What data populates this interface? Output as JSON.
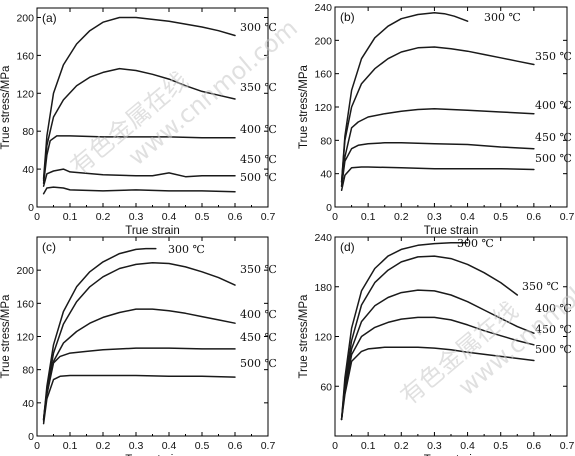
{
  "chart_data": [
    {
      "type": "line",
      "panel_label": "(a)",
      "xlabel": "True strain",
      "ylabel": "True stress/MPa",
      "xlim": [
        0,
        0.7
      ],
      "ylim": [
        0,
        210
      ],
      "xticks": [
        "0",
        "0.1",
        "0.2",
        "0.3",
        "0.4",
        "0.5",
        "0.6",
        "0.7"
      ],
      "yticks": [
        "0",
        "40",
        "80",
        "120",
        "160",
        "200"
      ],
      "ytick_values": [
        0,
        40,
        80,
        120,
        160,
        200
      ],
      "series": [
        {
          "name": "300 ℃",
          "x": [
            0.02,
            0.03,
            0.05,
            0.08,
            0.12,
            0.16,
            0.2,
            0.25,
            0.3,
            0.35,
            0.4,
            0.45,
            0.5,
            0.55,
            0.6
          ],
          "y": [
            30,
            75,
            120,
            150,
            172,
            186,
            195,
            200,
            200,
            198,
            196,
            193,
            190,
            186,
            181
          ]
        },
        {
          "name": "350 ℃",
          "x": [
            0.02,
            0.03,
            0.05,
            0.08,
            0.12,
            0.16,
            0.2,
            0.25,
            0.3,
            0.35,
            0.4,
            0.45,
            0.5,
            0.55,
            0.6
          ],
          "y": [
            28,
            65,
            95,
            113,
            128,
            137,
            142,
            146,
            144,
            140,
            135,
            128,
            122,
            118,
            114
          ]
        },
        {
          "name": "400 ℃",
          "x": [
            0.02,
            0.03,
            0.04,
            0.06,
            0.1,
            0.2,
            0.3,
            0.4,
            0.5,
            0.6
          ],
          "y": [
            25,
            55,
            70,
            75,
            75,
            74,
            74,
            74,
            73,
            73
          ]
        },
        {
          "name": "450 ℃",
          "x": [
            0.02,
            0.03,
            0.05,
            0.08,
            0.1,
            0.2,
            0.3,
            0.35,
            0.4,
            0.45,
            0.5,
            0.6
          ],
          "y": [
            22,
            35,
            38,
            40,
            37,
            34,
            33,
            33,
            36,
            32,
            33,
            33
          ]
        },
        {
          "name": "500 ℃",
          "x": [
            0.02,
            0.03,
            0.05,
            0.08,
            0.1,
            0.2,
            0.3,
            0.4,
            0.5,
            0.6
          ],
          "y": [
            14,
            20,
            21,
            20,
            18,
            17,
            18,
            17,
            17,
            16
          ]
        }
      ]
    },
    {
      "type": "line",
      "panel_label": "(b)",
      "xlabel": "True strain",
      "ylabel": "True stress/MPa",
      "xlim": [
        0,
        0.7
      ],
      "ylim": [
        0,
        240
      ],
      "xticks": [
        "0",
        "0.1",
        "0.2",
        "0.3",
        "0.4",
        "0.5",
        "0.6",
        "0.7"
      ],
      "yticks": [
        "0",
        "40",
        "80",
        "120",
        "160",
        "200",
        "240"
      ],
      "ytick_values": [
        0,
        40,
        80,
        120,
        160,
        200,
        240
      ],
      "series": [
        {
          "name": "300 ℃",
          "x": [
            0.02,
            0.03,
            0.05,
            0.08,
            0.12,
            0.16,
            0.2,
            0.25,
            0.3,
            0.33,
            0.36,
            0.4
          ],
          "y": [
            30,
            85,
            140,
            178,
            203,
            217,
            226,
            231,
            233,
            232,
            229,
            223
          ]
        },
        {
          "name": "350 ℃",
          "x": [
            0.02,
            0.03,
            0.05,
            0.08,
            0.12,
            0.16,
            0.2,
            0.25,
            0.3,
            0.35,
            0.4,
            0.45,
            0.5,
            0.55,
            0.6
          ],
          "y": [
            30,
            80,
            120,
            148,
            166,
            178,
            186,
            191,
            192,
            190,
            187,
            183,
            179,
            175,
            171
          ]
        },
        {
          "name": "400 ℃",
          "x": [
            0.02,
            0.03,
            0.05,
            0.07,
            0.1,
            0.15,
            0.2,
            0.25,
            0.3,
            0.35,
            0.4,
            0.5,
            0.6
          ],
          "y": [
            25,
            60,
            95,
            102,
            108,
            112,
            115,
            117,
            118,
            117,
            116,
            114,
            112
          ]
        },
        {
          "name": "450 ℃",
          "x": [
            0.02,
            0.03,
            0.05,
            0.07,
            0.1,
            0.15,
            0.2,
            0.3,
            0.4,
            0.5,
            0.6
          ],
          "y": [
            25,
            55,
            70,
            74,
            76,
            77,
            77,
            76,
            75,
            72,
            70
          ]
        },
        {
          "name": "500 ℃",
          "x": [
            0.02,
            0.03,
            0.05,
            0.08,
            0.1,
            0.2,
            0.3,
            0.4,
            0.5,
            0.6
          ],
          "y": [
            20,
            38,
            47,
            48,
            48,
            47,
            46,
            46,
            46,
            45
          ]
        }
      ]
    },
    {
      "type": "line",
      "panel_label": "(c)",
      "xlabel": "True strain",
      "ylabel": "True stress/MPa",
      "xlim": [
        0,
        0.7
      ],
      "ylim": [
        0,
        240
      ],
      "xticks": [
        "0",
        "0.1",
        "0.2",
        "0.3",
        "0.4",
        "0.5",
        "0.6",
        "0.7"
      ],
      "yticks": [
        "0",
        "40",
        "80",
        "120",
        "160",
        "200"
      ],
      "ytick_values": [
        0,
        40,
        80,
        120,
        160,
        200
      ],
      "series": [
        {
          "name": "300 ℃",
          "x": [
            0.02,
            0.03,
            0.05,
            0.08,
            0.12,
            0.16,
            0.2,
            0.25,
            0.3,
            0.33,
            0.36
          ],
          "y": [
            20,
            60,
            110,
            150,
            180,
            198,
            210,
            220,
            225,
            226,
            226
          ]
        },
        {
          "name": "350 ℃",
          "x": [
            0.02,
            0.03,
            0.05,
            0.08,
            0.12,
            0.16,
            0.2,
            0.25,
            0.3,
            0.35,
            0.4,
            0.45,
            0.5,
            0.55,
            0.6
          ],
          "y": [
            20,
            55,
            100,
            135,
            162,
            180,
            192,
            202,
            207,
            209,
            208,
            204,
            198,
            191,
            182
          ]
        },
        {
          "name": "400 ℃",
          "x": [
            0.02,
            0.03,
            0.05,
            0.08,
            0.12,
            0.16,
            0.2,
            0.25,
            0.3,
            0.35,
            0.4,
            0.45,
            0.5,
            0.55,
            0.6
          ],
          "y": [
            20,
            55,
            90,
            112,
            126,
            136,
            143,
            149,
            153,
            153,
            151,
            148,
            144,
            140,
            136
          ]
        },
        {
          "name": "450 ℃",
          "x": [
            0.02,
            0.03,
            0.05,
            0.07,
            0.1,
            0.15,
            0.2,
            0.3,
            0.4,
            0.5,
            0.6
          ],
          "y": [
            18,
            50,
            88,
            96,
            100,
            102,
            104,
            106,
            106,
            105,
            105
          ]
        },
        {
          "name": "500 ℃",
          "x": [
            0.02,
            0.03,
            0.05,
            0.07,
            0.1,
            0.2,
            0.3,
            0.4,
            0.5,
            0.6
          ],
          "y": [
            15,
            45,
            68,
            72,
            73,
            73,
            73,
            72,
            72,
            71
          ]
        }
      ]
    },
    {
      "type": "line",
      "panel_label": "(d)",
      "xlabel": "True strain",
      "ylabel": "True stress/MPa",
      "xlim": [
        0,
        0.7
      ],
      "ylim": [
        0,
        240
      ],
      "xticks": [
        "0",
        "0.1",
        "0.2",
        "0.3",
        "0.4",
        "0.5",
        "0.6",
        "0.7"
      ],
      "yticks": [
        "60",
        "120",
        "180",
        "240"
      ],
      "ytick_values": [
        60,
        120,
        180,
        240
      ],
      "series": [
        {
          "name": "300 ℃",
          "x": [
            0.02,
            0.03,
            0.05,
            0.08,
            0.12,
            0.16,
            0.2,
            0.25,
            0.3,
            0.35,
            0.4
          ],
          "y": [
            20,
            70,
            130,
            175,
            202,
            217,
            225,
            230,
            232,
            233,
            233
          ]
        },
        {
          "name": "350 ℃",
          "x": [
            0.02,
            0.03,
            0.05,
            0.08,
            0.12,
            0.16,
            0.2,
            0.25,
            0.3,
            0.35,
            0.4,
            0.45,
            0.5,
            0.55
          ],
          "y": [
            20,
            65,
            115,
            158,
            185,
            200,
            210,
            216,
            217,
            214,
            207,
            197,
            185,
            170
          ]
        },
        {
          "name": "400 ℃",
          "x": [
            0.02,
            0.03,
            0.05,
            0.08,
            0.12,
            0.16,
            0.2,
            0.25,
            0.3,
            0.35,
            0.4,
            0.45,
            0.5,
            0.55,
            0.6
          ],
          "y": [
            20,
            60,
            105,
            138,
            157,
            167,
            173,
            176,
            175,
            170,
            162,
            152,
            142,
            132,
            124
          ]
        },
        {
          "name": "450 ℃",
          "x": [
            0.02,
            0.03,
            0.05,
            0.08,
            0.12,
            0.16,
            0.2,
            0.25,
            0.3,
            0.35,
            0.4,
            0.45,
            0.5,
            0.55,
            0.6
          ],
          "y": [
            20,
            55,
            98,
            120,
            131,
            137,
            141,
            143,
            143,
            140,
            134,
            127,
            121,
            115,
            110
          ]
        },
        {
          "name": "500 ℃",
          "x": [
            0.02,
            0.03,
            0.05,
            0.08,
            0.1,
            0.15,
            0.2,
            0.25,
            0.3,
            0.35,
            0.4,
            0.5,
            0.6
          ],
          "y": [
            20,
            50,
            90,
            102,
            105,
            107,
            107,
            107,
            106,
            104,
            101,
            96,
            91
          ]
        }
      ]
    }
  ],
  "watermark": {
    "text_cn": "有色金属在线",
    "text_en": "www.cnnmol.com"
  }
}
